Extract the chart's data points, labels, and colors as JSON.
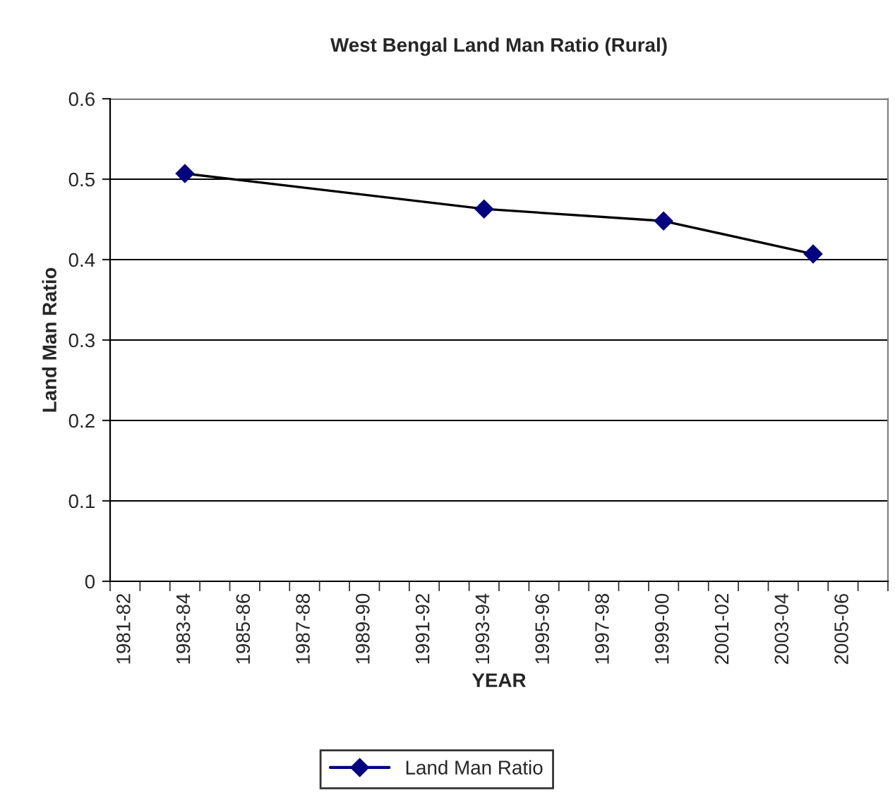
{
  "chart_data": {
    "type": "line",
    "title": "West Bengal Land Man Ratio (Rural)",
    "xlabel": "YEAR",
    "ylabel": "Land Man Ratio",
    "categories": [
      "1981-82",
      null,
      "1983-84",
      null,
      "1985-86",
      null,
      "1987-88",
      null,
      "1989-90",
      null,
      "1991-92",
      null,
      "1993-94",
      null,
      "1995-96",
      null,
      "1997-98",
      null,
      "1999-00",
      null,
      "2001-02",
      null,
      "2003-04",
      null,
      "2005-06",
      null
    ],
    "series": [
      {
        "name": "Land Man Ratio",
        "color": "#000080",
        "values": [
          null,
          null,
          0.507,
          null,
          null,
          null,
          null,
          null,
          null,
          null,
          null,
          null,
          0.463,
          null,
          null,
          null,
          null,
          null,
          0.448,
          null,
          null,
          null,
          null,
          0.407,
          null,
          null
        ]
      }
    ],
    "ylim": [
      0,
      0.6
    ],
    "yticks": [
      0,
      0.1,
      0.2,
      0.3,
      0.4,
      0.5,
      0.6
    ],
    "grid": "y",
    "legend": "bottom",
    "marker": "diamond",
    "line_style": "solid"
  }
}
